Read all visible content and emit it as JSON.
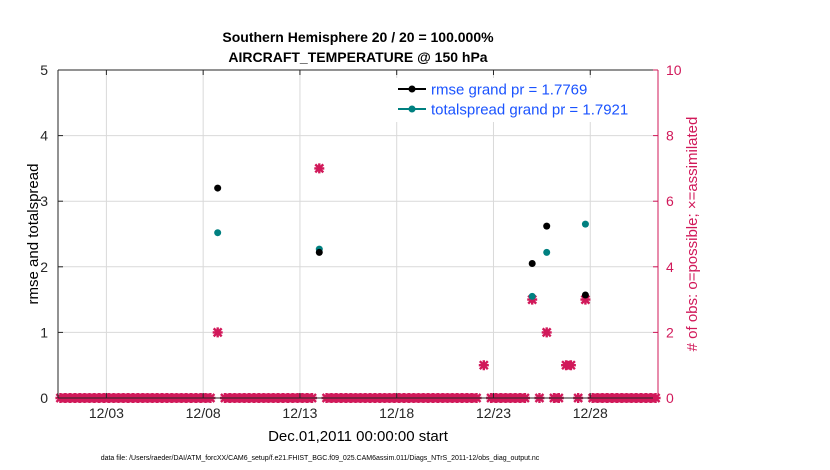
{
  "colors": {
    "rmse": "#000000",
    "spread": "#008080",
    "obs": "#D1195A",
    "legend_text": "#1a53ff",
    "grid": "#d9d9d9"
  },
  "chart_data": {
    "type": "scatter",
    "title_line1": "Southern Hemisphere 20 / 20 = 100.000%",
    "title_line2": "AIRCRAFT_TEMPERATURE @ 150 hPa",
    "xlabel": "Dec.01,2011 00:00:00 start",
    "ylabel_left": "rmse and totalspread",
    "ylabel_right": "# of obs: o=possible; ×=assimilated",
    "xlim": [
      0,
      31
    ],
    "ylim_left": [
      0,
      5
    ],
    "ylim_right": [
      0,
      10
    ],
    "x_ticks": [
      2.5,
      7.5,
      12.5,
      17.5,
      22.5,
      27.5
    ],
    "x_tick_labels": [
      "12/03",
      "12/08",
      "12/13",
      "12/18",
      "12/23",
      "12/28"
    ],
    "y_ticks_left": [
      0,
      1,
      2,
      3,
      4,
      5
    ],
    "y_ticks_left_labels": [
      "0",
      "1",
      "2",
      "3",
      "4",
      "5"
    ],
    "y_ticks_right": [
      0,
      2,
      4,
      6,
      8,
      10
    ],
    "y_ticks_right_labels": [
      "0",
      "2",
      "4",
      "6",
      "8",
      "10"
    ],
    "legend": [
      {
        "name": "rmse grand pr = 1.7769"
      },
      {
        "name": "totalspread grand pr = 1.7921"
      }
    ],
    "series": [
      {
        "name": "rmse",
        "axis": "left",
        "x": [
          8.25,
          13.5,
          24.5,
          25.25,
          27.25
        ],
        "y": [
          3.2,
          2.22,
          2.05,
          2.62,
          1.57
        ]
      },
      {
        "name": "totalspread",
        "axis": "left",
        "x": [
          8.25,
          13.5,
          24.5,
          25.25,
          27.25
        ],
        "y": [
          2.52,
          2.27,
          1.55,
          2.22,
          2.65
        ]
      },
      {
        "name": "obs_assimilated",
        "axis": "right",
        "x": [
          8.25,
          13.5,
          22.0,
          24.5,
          25.25,
          26.25,
          26.5,
          27.25
        ],
        "y": [
          2,
          7,
          1,
          3,
          2,
          1,
          1,
          3
        ]
      }
    ],
    "zero_obs_x_range": [
      0,
      31
    ],
    "zero_obs_step": 0.25
  },
  "footnote": "data file: /Users/raeder/DAI/ATM_forcXX/CAM6_setup/f.e21.FHIST_BGC.f09_025.CAM6assim.011/Diags_NTrS_2011-12/obs_diag_output.nc"
}
